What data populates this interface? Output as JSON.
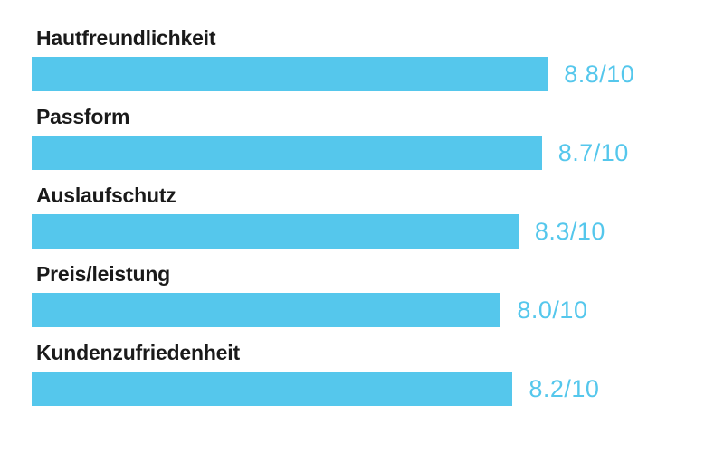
{
  "chart_data": {
    "type": "bar",
    "orientation": "horizontal",
    "title": "",
    "categories": [
      "Hautfreundlichkeit",
      "Passform",
      "Auslaufschutz",
      "Preis/leistung",
      "Kundenzufriedenheit"
    ],
    "values": [
      8.8,
      8.7,
      8.3,
      8.0,
      8.2
    ],
    "value_labels": [
      "8.8/10",
      "8.7/10",
      "8.3/10",
      "8.0/10",
      "8.2/10"
    ],
    "scale_max": 10,
    "grid": false,
    "legend": false,
    "bar_color": "#55C7EC",
    "label_color": "#1A1A1A",
    "value_color": "#55C7EC",
    "background_color": "#FFFFFF"
  },
  "rows": [
    {
      "label": "Hautfreundlichkeit",
      "value": 8.8,
      "value_label": "8.8/10"
    },
    {
      "label": "Passform",
      "value": 8.7,
      "value_label": "8.7/10"
    },
    {
      "label": "Auslaufschutz",
      "value": 8.3,
      "value_label": "8.3/10"
    },
    {
      "label": "Preis/leistung",
      "value": 8.0,
      "value_label": "8.0/10"
    },
    {
      "label": "Kundenzufriedenheit",
      "value": 8.2,
      "value_label": "8.2/10"
    }
  ]
}
